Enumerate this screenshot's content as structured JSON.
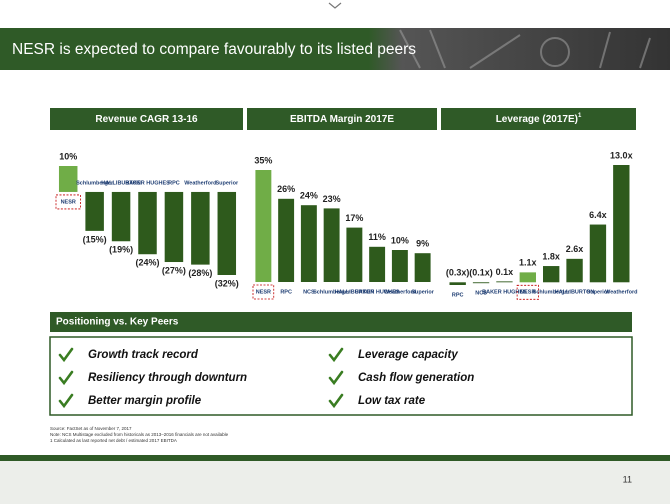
{
  "header": {
    "title": "NESR is expected to compare favourably to its listed peers"
  },
  "chart_data": [
    {
      "type": "bar",
      "title": "Revenue CAGR 13-16",
      "categories": [
        "NESR",
        "Schlumberger",
        "HALLIBURTON",
        "BAKER HUGHES",
        "RPC",
        "Weatherford",
        "Superior"
      ],
      "values": [
        10,
        -15,
        -19,
        -24,
        -27,
        -28,
        -32
      ],
      "value_labels": [
        "10%",
        "(15%)",
        "(19%)",
        "(24%)",
        "(27%)",
        "(28%)",
        "(32%)"
      ],
      "colors": [
        "#70ad47",
        "#2e5a1c",
        "#2e5a1c",
        "#2e5a1c",
        "#2e5a1c",
        "#2e5a1c",
        "#2e5a1c"
      ]
    },
    {
      "type": "bar",
      "title": "EBITDA Margin 2017E",
      "categories": [
        "NESR",
        "RPC",
        "NCS",
        "Schlumberger",
        "HALLIBURTON",
        "BAKER HUGHES",
        "Weatherford",
        "Superior"
      ],
      "values": [
        35,
        26,
        24,
        23,
        17,
        11,
        10,
        9
      ],
      "value_labels": [
        "35%",
        "26%",
        "24%",
        "23%",
        "17%",
        "11%",
        "10%",
        "9%"
      ],
      "colors": [
        "#70ad47",
        "#2e5a1c",
        "#2e5a1c",
        "#2e5a1c",
        "#2e5a1c",
        "#2e5a1c",
        "#2e5a1c",
        "#2e5a1c"
      ]
    },
    {
      "type": "bar",
      "title": "Leverage (2017E)",
      "title_note": "1",
      "categories": [
        "RPC",
        "NCS",
        "BAKER HUGHES",
        "NESR",
        "Schlumberger",
        "HALLIBURTON",
        "Superior",
        "Weatherford"
      ],
      "values": [
        -0.3,
        -0.1,
        0.1,
        1.1,
        1.8,
        2.6,
        6.4,
        13.0
      ],
      "value_labels": [
        "(0.3x)",
        "(0.1x)",
        "0.1x",
        "1.1x",
        "1.8x",
        "2.6x",
        "6.4x",
        "13.0x"
      ],
      "colors": [
        "#2e5a1c",
        "#2e5a1c",
        "#2e5a1c",
        "#70ad47",
        "#2e5a1c",
        "#2e5a1c",
        "#2e5a1c",
        "#2e5a1c"
      ]
    }
  ],
  "positioning": {
    "title": "Positioning vs. Key Peers",
    "items": [
      "Growth track record",
      "Resiliency through downturn",
      "Better margin profile",
      "Leverage capacity",
      "Cash flow generation",
      "Low tax rate"
    ]
  },
  "footnotes": [
    "Source: FactSet as of November 7, 2017",
    "Note: NCS Multistage excluded from historicals as 2013–2016 financials are not available",
    "1  Calculated as last reported net debt / estimated 2017 EBITDA"
  ],
  "page_number": "11"
}
